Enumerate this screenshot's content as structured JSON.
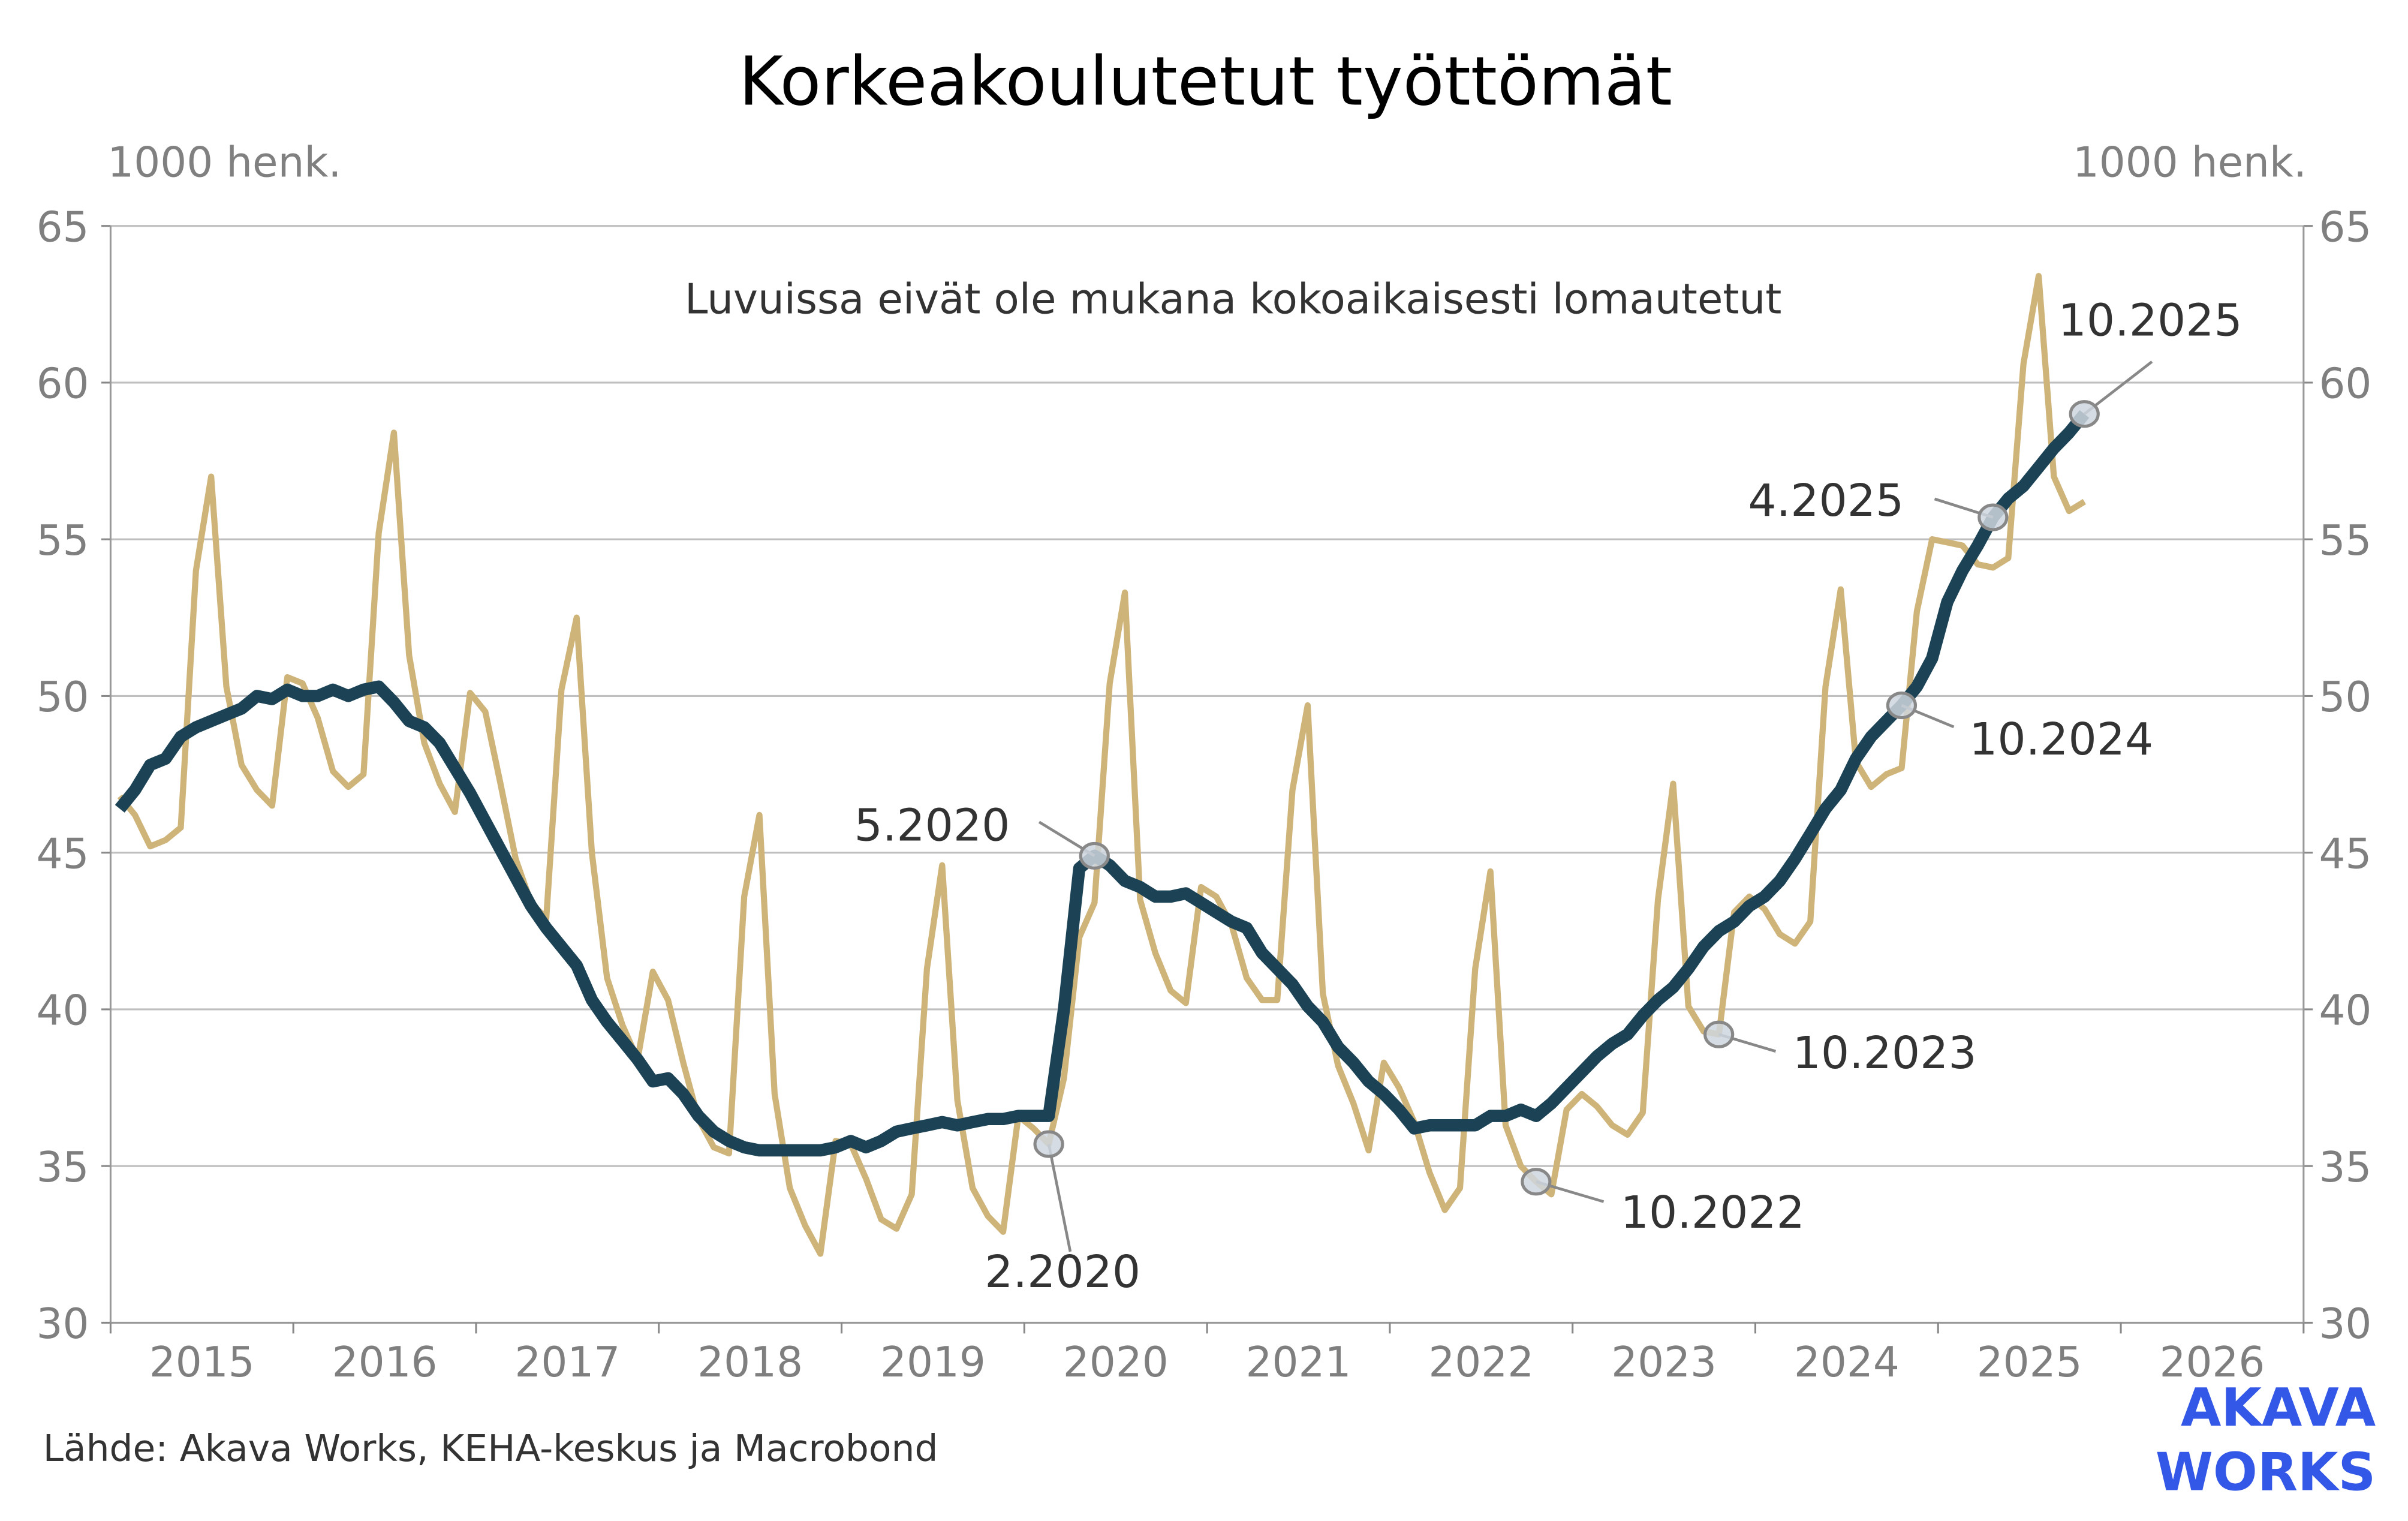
{
  "chart_data": {
    "type": "line",
    "title": "Korkeakoulutetut työttömät",
    "ylabel_left": "1000 henk.",
    "ylabel_right": "1000 henk.",
    "note": "Luvuissa eivät ole mukana kokoaikaisesti lomautetut",
    "source": "Lähde: Akava Works, KEHA-keskus ja Macrobond",
    "ylim": [
      30,
      65
    ],
    "yticks": [
      30,
      35,
      40,
      45,
      50,
      55,
      60,
      65
    ],
    "xlim": [
      "2015-01",
      "2026-12"
    ],
    "xtick_labels": [
      "2015",
      "2016",
      "2017",
      "2018",
      "2019",
      "2020",
      "2021",
      "2022",
      "2023",
      "2024",
      "2025",
      "2026"
    ],
    "grid": true,
    "start_month": "2015-01",
    "series": [
      {
        "color": "#CFB47A",
        "values": [
          46.8,
          46.2,
          45.2,
          45.4,
          45.8,
          54.0,
          57.0,
          50.3,
          47.8,
          47.0,
          46.5,
          50.6,
          50.4,
          49.3,
          47.6,
          47.1,
          47.5,
          55.2,
          58.4,
          51.3,
          48.5,
          47.2,
          46.3,
          50.1,
          49.5,
          47.2,
          44.8,
          43.4,
          42.9,
          50.2,
          52.5,
          45.0,
          41.0,
          39.5,
          38.4,
          41.2,
          40.3,
          38.3,
          36.5,
          35.6,
          35.4,
          43.6,
          46.2,
          37.3,
          34.3,
          33.1,
          32.2,
          35.8,
          35.7,
          34.6,
          33.3,
          33.0,
          34.1,
          41.3,
          44.6,
          37.1,
          34.3,
          33.4,
          32.9,
          36.6,
          36.2,
          35.7,
          37.8,
          42.3,
          43.4,
          50.4,
          53.3,
          43.5,
          41.8,
          40.6,
          40.2,
          43.9,
          43.6,
          42.7,
          41.0,
          40.3,
          40.3,
          47.0,
          49.7,
          40.5,
          38.2,
          37.0,
          35.5,
          38.3,
          37.5,
          36.4,
          34.8,
          33.6,
          34.3,
          41.3,
          44.4,
          36.3,
          35.0,
          34.5,
          34.1,
          36.8,
          37.3,
          36.9,
          36.3,
          36.0,
          36.7,
          43.5,
          47.2,
          40.1,
          39.3,
          39.2,
          43.1,
          43.6,
          43.2,
          42.4,
          42.1,
          42.8,
          50.3,
          53.4,
          47.9,
          47.1,
          47.5,
          47.7,
          52.7,
          55.0,
          54.9,
          54.8,
          54.2,
          54.1,
          54.4,
          60.6,
          63.4,
          57.0,
          55.9,
          56.2
        ]
      },
      {
        "color": "#1C4355",
        "values": [
          46.4,
          47.0,
          47.8,
          48.0,
          48.7,
          49.0,
          49.2,
          49.4,
          49.6,
          50.0,
          49.9,
          50.2,
          50.0,
          50.0,
          50.2,
          50.0,
          50.2,
          50.3,
          49.8,
          49.2,
          49.0,
          48.5,
          47.7,
          46.9,
          46.0,
          45.1,
          44.2,
          43.3,
          42.6,
          42.0,
          41.4,
          40.3,
          39.6,
          39.0,
          38.4,
          37.7,
          37.8,
          37.3,
          36.6,
          36.1,
          35.8,
          35.6,
          35.5,
          35.5,
          35.5,
          35.5,
          35.5,
          35.6,
          35.8,
          35.6,
          35.8,
          36.1,
          36.2,
          36.3,
          36.4,
          36.3,
          36.4,
          36.5,
          36.5,
          36.6,
          36.6,
          36.6,
          40.0,
          44.5,
          44.9,
          44.6,
          44.1,
          43.9,
          43.6,
          43.6,
          43.7,
          43.4,
          43.1,
          42.8,
          42.6,
          41.8,
          41.3,
          40.8,
          40.1,
          39.6,
          38.8,
          38.3,
          37.7,
          37.3,
          36.8,
          36.2,
          36.3,
          36.3,
          36.3,
          36.3,
          36.6,
          36.6,
          36.8,
          36.6,
          37.0,
          37.5,
          38.0,
          38.5,
          38.9,
          39.2,
          39.8,
          40.3,
          40.7,
          41.3,
          42.0,
          42.5,
          42.8,
          43.3,
          43.6,
          44.1,
          44.8,
          45.6,
          46.4,
          47.0,
          48.0,
          48.7,
          49.2,
          49.7,
          50.3,
          51.2,
          53.0,
          54.0,
          54.8,
          55.7,
          56.3,
          56.7,
          57.3,
          57.9,
          58.4,
          59.0
        ]
      }
    ],
    "annotations": [
      {
        "label": "2.2020",
        "series": 0,
        "month_index": 61
      },
      {
        "label": "5.2020",
        "series": 1,
        "month_index": 64
      },
      {
        "label": "10.2022",
        "series": 0,
        "month_index": 93
      },
      {
        "label": "10.2023",
        "series": 0,
        "month_index": 105
      },
      {
        "label": "10.2024",
        "series": 1,
        "month_index": 117
      },
      {
        "label": "4.2025",
        "series": 1,
        "month_index": 123
      },
      {
        "label": "10.2025",
        "series": 1,
        "month_index": 129
      }
    ]
  },
  "logo": {
    "line1": "AKAVA",
    "line2": "WORKS",
    "color": "#3357E6"
  }
}
